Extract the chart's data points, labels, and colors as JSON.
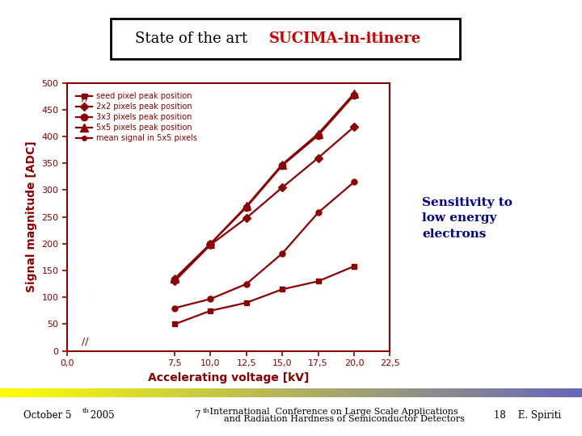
{
  "title_black": "State of the art  ",
  "title_red": "SUCIMA-in-itinere",
  "sensitivity_text": "Sensitivity to\nlow energy\nelectrons",
  "xlabel": "Accelerating voltage [kV]",
  "ylabel": "Signal magnitude [ADC]",
  "x_values": [
    7.5,
    10.0,
    12.5,
    15.0,
    17.5,
    20.0
  ],
  "seed_data": [
    50,
    75,
    90,
    115,
    130,
    158
  ],
  "px2x2_data": [
    130,
    198,
    248,
    305,
    360,
    418
  ],
  "px3x3_data": [
    133,
    200,
    268,
    346,
    402,
    477
  ],
  "px5x5_data": [
    135,
    200,
    270,
    348,
    405,
    480
  ],
  "mean5x5_data": [
    80,
    97,
    125,
    182,
    258,
    315
  ],
  "line_color": "#8B0000",
  "bg_color": "#ffffff",
  "ylim": [
    0,
    500
  ],
  "xlim": [
    0.0,
    22.5
  ],
  "xticks": [
    0.0,
    7.5,
    10.0,
    12.5,
    15.0,
    17.5,
    20.0,
    22.5
  ],
  "xtick_labels": [
    "0,0",
    "7,5",
    "10,0",
    "12,5",
    "15,0",
    "17,5",
    "20,0",
    "22,5"
  ],
  "yticks": [
    0,
    50,
    100,
    150,
    200,
    250,
    300,
    350,
    400,
    450,
    500
  ],
  "gradient_start": "#ffff00",
  "gradient_end": "#6666bb",
  "footer_left": "October 5",
  "footer_left_super": "th",
  "footer_left2": " 2005",
  "footer_center_num": "7",
  "footer_center_super": "th",
  "footer_center_text": " International  Conference on Large Scale Applications",
  "footer_center_text2": "and Radiation Hardness of Semiconductor Detectors",
  "footer_right": "18    E. Spiriti"
}
